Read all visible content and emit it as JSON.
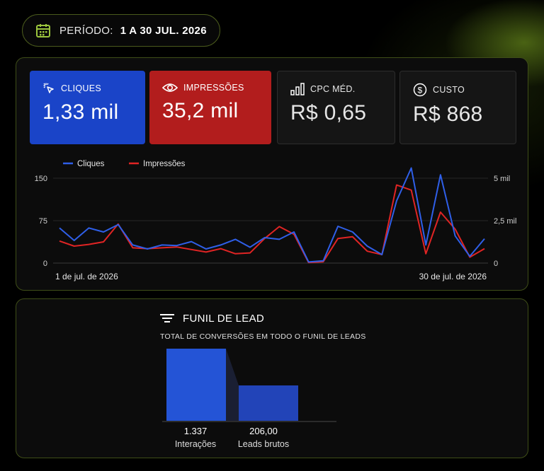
{
  "period": {
    "label": "PERÍODO:",
    "value": "1 A 30 JUL. 2026",
    "icon": "calendar-icon"
  },
  "kpis": {
    "clicks": {
      "label": "CLIQUES",
      "value": "1,33 mil",
      "icon": "cursor-click-icon",
      "color": "#1a44c8"
    },
    "impressions": {
      "label": "IMPRESSÕES",
      "value": "35,2 mil",
      "icon": "eye-icon",
      "color": "#b21d1d"
    },
    "cpc": {
      "label": "CPC MÉD.",
      "value": "R$ 0,65",
      "icon": "bar-chart-icon"
    },
    "cost": {
      "label": "CUSTO",
      "value": "R$ 868",
      "icon": "dollar-circle-icon"
    }
  },
  "chart_data": {
    "type": "line",
    "x": [
      "1 de jul. de 2026",
      "2",
      "3",
      "4",
      "5",
      "6",
      "7",
      "8",
      "9",
      "10",
      "11",
      "12",
      "13",
      "14",
      "15",
      "16",
      "17",
      "18",
      "19",
      "20",
      "21",
      "22",
      "23",
      "24",
      "25",
      "26",
      "27",
      "28",
      "29",
      "30 de jul. de 2026"
    ],
    "x_tick_labels": [
      "1 de jul. de 2026",
      "30 de jul. de 2026"
    ],
    "series": [
      {
        "name": "Cliques",
        "axis": "left",
        "color": "#2f5fe8",
        "values": [
          62,
          40,
          62,
          55,
          68,
          32,
          25,
          32,
          31,
          38,
          25,
          32,
          42,
          28,
          45,
          42,
          55,
          2,
          4,
          65,
          55,
          30,
          15,
          110,
          168,
          32,
          156,
          48,
          12,
          43
        ]
      },
      {
        "name": "Impressões",
        "axis": "right",
        "color": "#e02424",
        "values": [
          1300,
          1000,
          1100,
          1250,
          2300,
          900,
          850,
          900,
          950,
          800,
          650,
          850,
          550,
          600,
          1450,
          2150,
          1700,
          30,
          80,
          1450,
          1550,
          700,
          500,
          4600,
          4300,
          550,
          3000,
          2000,
          350,
          850
        ]
      }
    ],
    "y_left": {
      "ticks": [
        "0",
        "75",
        "150"
      ],
      "lim": [
        0,
        180
      ]
    },
    "y_right": {
      "ticks": [
        "0",
        "2,5 mil",
        "5 mil"
      ],
      "lim": [
        0,
        6000
      ]
    },
    "legend_position": "top-left",
    "grid": true
  },
  "funnel": {
    "title": "FUNIL DE LEAD",
    "subtitle": "TOTAL DE CONVERSÕES EM TODO O FUNIL DE LEADS",
    "icon": "filter-lines-icon",
    "stages": [
      {
        "label": "Interações",
        "value_text": "1.337",
        "value": 1337,
        "color": "#2454d6"
      },
      {
        "label": "Leads brutos",
        "value_text": "206,00",
        "value": 206,
        "color": "#2244b8"
      }
    ]
  }
}
